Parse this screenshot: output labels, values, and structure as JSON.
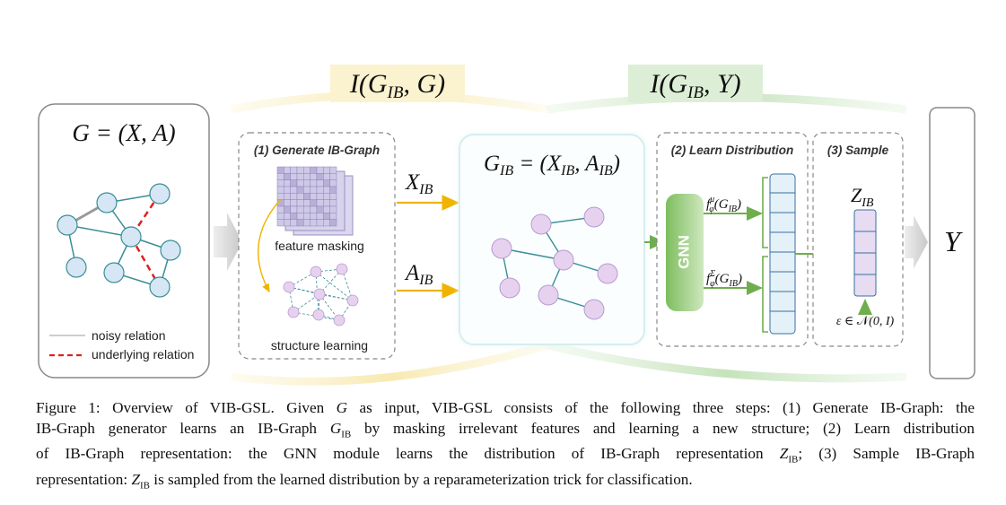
{
  "objectives": {
    "left": "I(G_IB, G)",
    "right": "I(G_IB, Y)"
  },
  "input_panel": {
    "title": "G = (X, A)",
    "legend": [
      {
        "label": "noisy relation",
        "style": "solid-gray"
      },
      {
        "label": "underlying relation",
        "style": "dashed-red"
      }
    ]
  },
  "generate_panel": {
    "title": "(1) Generate IB-Graph",
    "feature_label": "feature masking",
    "structure_label": "structure learning"
  },
  "edge_labels": {
    "features": "X_IB",
    "adjacency": "A_IB"
  },
  "ib_graph_panel": {
    "title": "G_IB = (X_IB, A_IB)"
  },
  "learn_panel": {
    "title": "(2) Learn Distribution",
    "module": "GNN",
    "mu_label": "f^μ_φ(G_IB)",
    "sigma_label": "f^Σ_φ(G_IB)"
  },
  "sample_panel": {
    "title": "(3) Sample",
    "z_label": "Z_IB",
    "noise_label": "ε ∈ N(0, I)"
  },
  "output_panel": {
    "label": "Y"
  },
  "colors": {
    "node_fill": "#d6e6f5",
    "ib_node_fill": "#e6d2ef",
    "teal_edge": "#3a8e96",
    "red_dashed": "#e02020",
    "gnn_green": "#8dc772",
    "arrow_orange": "#f0b400",
    "arrow_green": "#6fae4e",
    "left_highlight": "#fbf2cf",
    "right_highlight": "#dcefd6"
  },
  "caption": {
    "line1": "Figure 1: Overview of VIB-GSL. Given G as input, VIB-GSL consists of the following three steps: (1) Generate IB-Graph: the",
    "line2": "IB-Graph generator learns an IB-Graph G_IB by masking irrelevant features and learning a new structure; (2) Learn distribution",
    "line3": "of IB-Graph representation: the GNN module learns the distribution of IB-Graph representation Z_IB; (3) Sample IB-Graph",
    "line4": "representation: Z_IB is sampled from the learned distribution by a reparameterization trick for classification."
  }
}
